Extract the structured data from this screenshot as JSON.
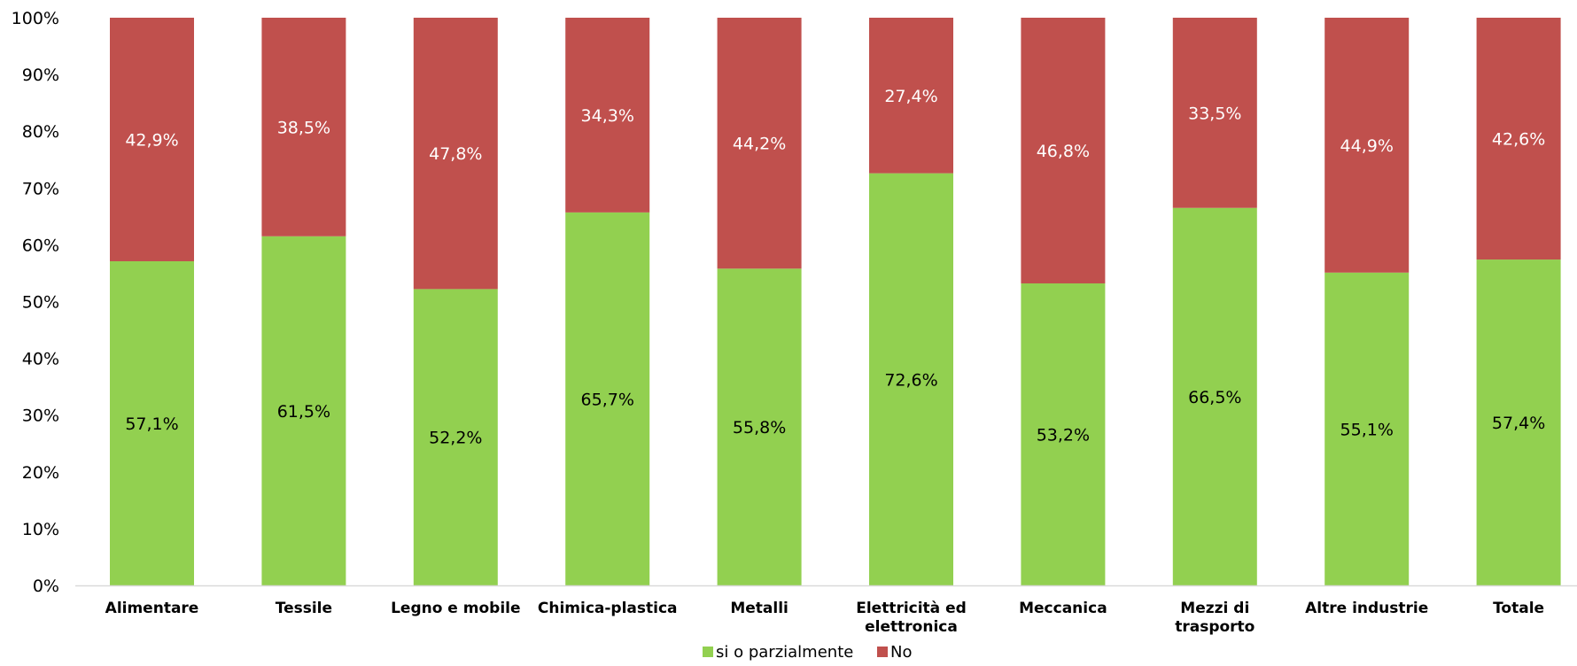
{
  "chart_data": {
    "type": "bar",
    "stacked": true,
    "percent_stacked": true,
    "categories": [
      [
        "Alimentare"
      ],
      [
        "Tessile"
      ],
      [
        "Legno e mobile"
      ],
      [
        "Chimica-plastica"
      ],
      [
        "Metalli"
      ],
      [
        "Elettricità ed",
        "elettronica"
      ],
      [
        "Meccanica"
      ],
      [
        "Mezzi di",
        "trasporto"
      ],
      [
        "Altre industrie"
      ],
      [
        "Totale"
      ]
    ],
    "series": [
      {
        "name": "si o parzialmente",
        "color": "#92d050",
        "label_color": "#000000",
        "values": [
          57.1,
          61.5,
          52.2,
          65.7,
          55.8,
          72.6,
          53.2,
          66.5,
          55.1,
          57.4
        ],
        "labels": [
          "57,1%",
          "61,5%",
          "52,2%",
          "65,7%",
          "55,8%",
          "72,6%",
          "53,2%",
          "66,5%",
          "55,1%",
          "57,4%"
        ]
      },
      {
        "name": "No",
        "color": "#c0504d",
        "label_color": "#ffffff",
        "values": [
          42.9,
          38.5,
          47.8,
          34.3,
          44.2,
          27.4,
          46.8,
          33.5,
          44.9,
          42.6
        ],
        "labels": [
          "42,9%",
          "38,5%",
          "47,8%",
          "34,3%",
          "44,2%",
          "27,4%",
          "46,8%",
          "33,5%",
          "44,9%",
          "42,6%"
        ]
      }
    ],
    "y_ticks": [
      "0%",
      "10%",
      "20%",
      "30%",
      "40%",
      "50%",
      "60%",
      "70%",
      "80%",
      "90%",
      "100%"
    ],
    "ylim": [
      0,
      100
    ],
    "grid": false,
    "legend_position": "bottom-center"
  }
}
